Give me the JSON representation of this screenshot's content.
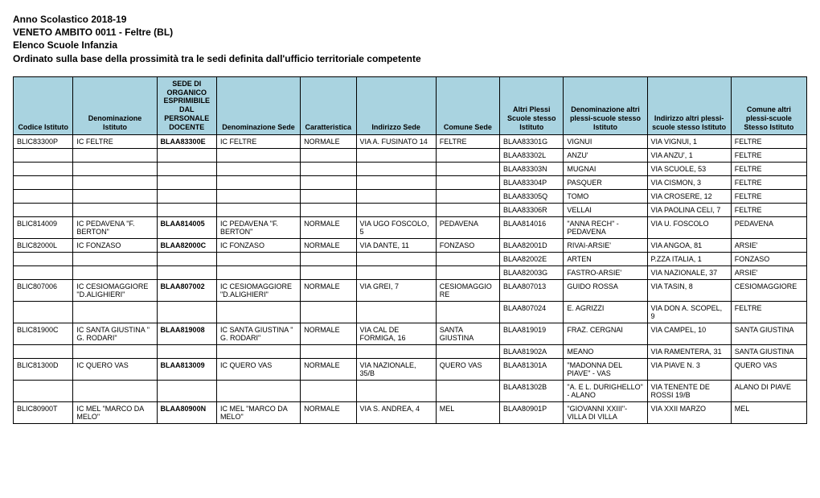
{
  "header": {
    "line1": "Anno Scolastico 2018-19",
    "line2": "VENETO AMBITO 0011 - Feltre (BL)",
    "line3": "Elenco Scuole Infanzia",
    "line4": "Ordinato sulla base della prossimità tra le sedi definita dall'ufficio territoriale competente"
  },
  "columns": [
    "Codice Istituto",
    "Denominazione Istituto",
    "SEDE DI ORGANICO ESPRIMIBILE DAL PERSONALE DOCENTE",
    "Denominazione Sede",
    "Caratteristica",
    "Indirizzo Sede",
    "Comune Sede",
    "Altri Plessi Scuole stesso Istituto",
    "Denominazione altri plessi-scuole stesso Istituto",
    "Indirizzo altri plessi-scuole stesso Istituto",
    "Comune altri plessi-scuole Stesso Istituto"
  ],
  "rows": [
    [
      "BLIC83300P",
      "IC  FELTRE",
      "BLAA83300E",
      "IC  FELTRE",
      "NORMALE",
      "VIA       A. FUSINATO 14",
      "FELTRE",
      "BLAA83301G",
      "VIGNUI",
      "VIA VIGNUI, 1",
      "FELTRE"
    ],
    [
      "",
      "",
      "",
      "",
      "",
      "",
      "",
      "BLAA83302L",
      "ANZU'",
      "VIA ANZU', 1",
      "FELTRE"
    ],
    [
      "",
      "",
      "",
      "",
      "",
      "",
      "",
      "BLAA83303N",
      "MUGNAI",
      "VIA SCUOLE, 53",
      "FELTRE"
    ],
    [
      "",
      "",
      "",
      "",
      "",
      "",
      "",
      "BLAA83304P",
      "PASQUER",
      "VIA CISMON, 3",
      "FELTRE"
    ],
    [
      "",
      "",
      "",
      "",
      "",
      "",
      "",
      "BLAA83305Q",
      "TOMO",
      "VIA CROSERE, 12",
      "FELTRE"
    ],
    [
      "",
      "",
      "",
      "",
      "",
      "",
      "",
      "BLAA83306R",
      "VELLAI",
      "VIA PAOLINA CELI, 7",
      "FELTRE"
    ],
    [
      "BLIC814009",
      "IC  PEDAVENA \"F. BERTON\"",
      "BLAA814005",
      "IC  PEDAVENA \"F. BERTON\"",
      "NORMALE",
      "VIA UGO FOSCOLO, 5",
      "PEDAVENA",
      "BLAA814016",
      "\"ANNA RECH\" - PEDAVENA",
      "VIA U. FOSCOLO",
      "PEDAVENA"
    ],
    [
      "BLIC82000L",
      "IC FONZASO",
      "BLAA82000C",
      "IC FONZASO",
      "NORMALE",
      "VIA DANTE, 11",
      "FONZASO",
      "BLAA82001D",
      "RIVAI-ARSIE'",
      "VIA ANGOA, 81",
      "ARSIE'"
    ],
    [
      "",
      "",
      "",
      "",
      "",
      "",
      "",
      "BLAA82002E",
      "ARTEN",
      "P.ZZA ITALIA, 1",
      "FONZASO"
    ],
    [
      "",
      "",
      "",
      "",
      "",
      "",
      "",
      "BLAA82003G",
      "FASTRO-ARSIE'",
      "VIA NAZIONALE, 37",
      "ARSIE'"
    ],
    [
      "BLIC807006",
      "IC  CESIOMAGGIORE \"D.ALIGHIERI\"",
      "BLAA807002",
      "IC  CESIOMAGGIORE \"D.ALIGHIERI\"",
      "NORMALE",
      "VIA GREI, 7",
      "CESIOMAGGIORE",
      "BLAA807013",
      "GUIDO ROSSA",
      "VIA TASIN, 8",
      "CESIOMAGGIORE"
    ],
    [
      "",
      "",
      "",
      "",
      "",
      "",
      "",
      "BLAA807024",
      "E. AGRIZZI",
      "VIA DON A. SCOPEL, 9",
      "FELTRE"
    ],
    [
      "BLIC81900C",
      "IC  SANTA GIUSTINA \" G. RODARI\"",
      "BLAA819008",
      "IC  SANTA GIUSTINA \" G. RODARI\"",
      "NORMALE",
      "VIA CAL DE FORMIGA, 16",
      "SANTA GIUSTINA",
      "BLAA819019",
      "FRAZ. CERGNAI",
      "VIA CAMPEL, 10",
      "SANTA GIUSTINA"
    ],
    [
      "",
      "",
      "",
      "",
      "",
      "",
      "",
      "BLAA81902A",
      "MEANO",
      "VIA RAMENTERA, 31",
      "SANTA GIUSTINA"
    ],
    [
      "BLIC81300D",
      "IC QUERO VAS",
      "BLAA813009",
      "IC QUERO VAS",
      "NORMALE",
      "VIA NAZIONALE, 35/B",
      "QUERO VAS",
      "BLAA81301A",
      "\"MADONNA DEL PIAVE\" - VAS",
      "VIA PIAVE N. 3",
      "QUERO VAS"
    ],
    [
      "",
      "",
      "",
      "",
      "",
      "",
      "",
      "BLAA81302B",
      "\"A. E L. DURIGHELLO\" - ALANO",
      "VIA TENENTE DE ROSSI 19/B",
      "ALANO DI PIAVE"
    ],
    [
      "BLIC80900T",
      "IC  MEL \"MARCO DA MELO\"",
      "BLAA80900N",
      "IC  MEL \"MARCO DA MELO\"",
      "NORMALE",
      "VIA S. ANDREA, 4",
      "MEL",
      "BLAA80901P",
      "\"GIOVANNI XXIII\"-VILLA DI VILLA",
      "VIA XXII MARZO",
      "MEL"
    ]
  ],
  "colors": {
    "header_bg": "#a9d3e0",
    "border": "#000000",
    "text": "#000000"
  },
  "col_classes": [
    "col-codice",
    "col-denom",
    "col-sede",
    "col-denomsede",
    "col-caratt",
    "col-indir",
    "col-comune",
    "col-altripl",
    "col-denomalt",
    "col-indiralt",
    "col-comunealt"
  ]
}
